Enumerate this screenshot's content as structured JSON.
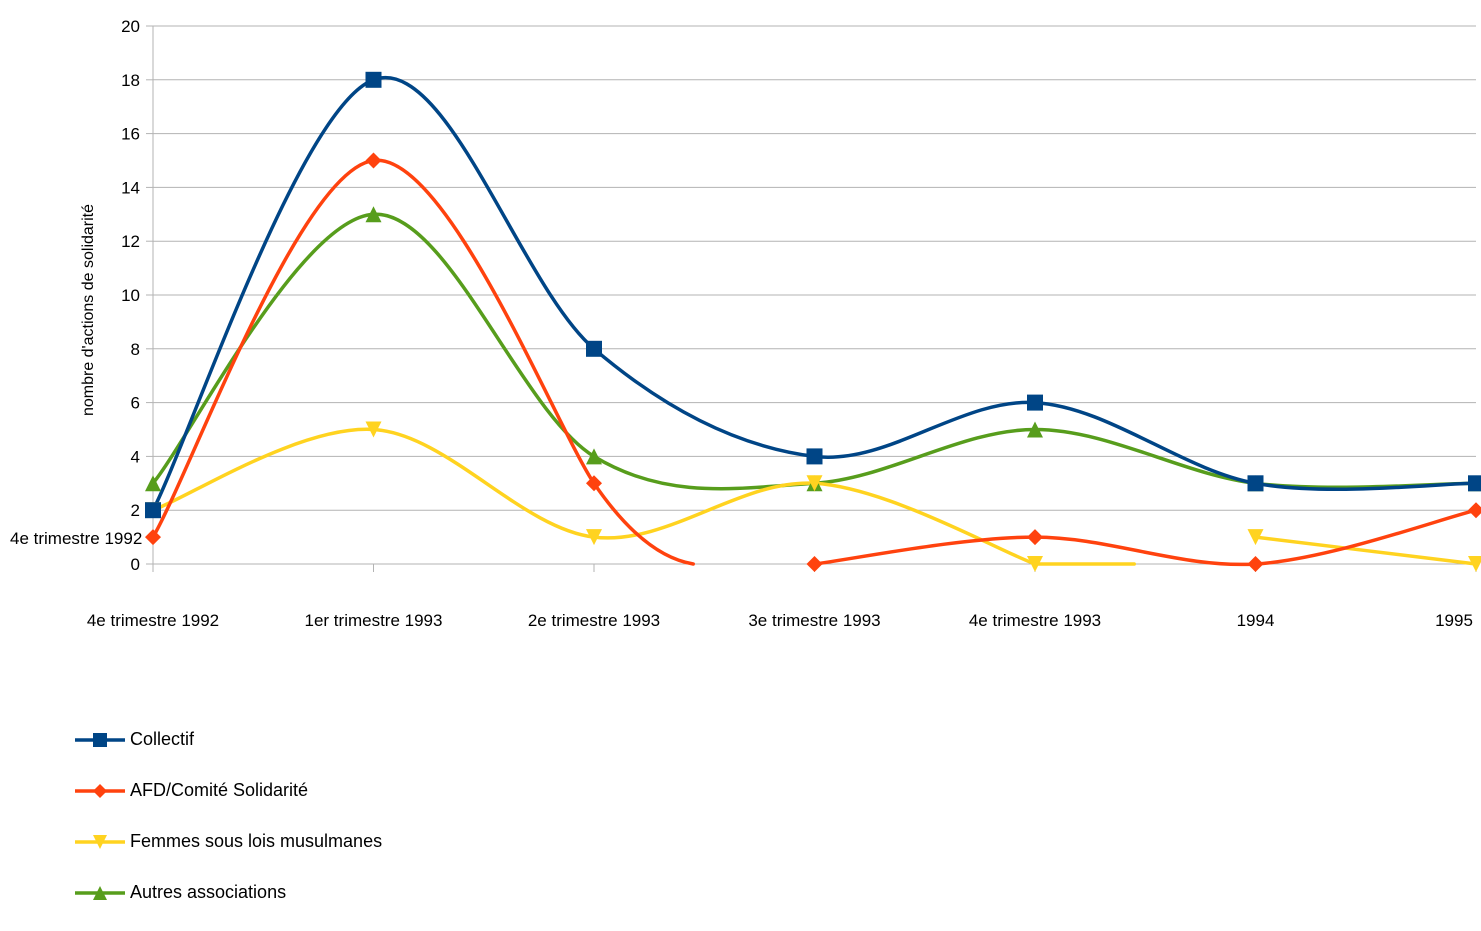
{
  "chart_data": {
    "type": "line",
    "title": "",
    "xlabel": "",
    "ylabel": "nombre d'actions de solidarité",
    "categories": [
      "4e trimestre 1992",
      "1er trimestre 1993",
      "2e trimestre 1993",
      "3e trimestre 1993",
      "4e trimestre 1993",
      "1994",
      "1995"
    ],
    "yticks": [
      "0",
      "2",
      "4",
      "6",
      "8",
      "10",
      "12",
      "14",
      "16",
      "18",
      "20"
    ],
    "ylim": [
      0,
      20
    ],
    "grid": true,
    "smooth": true,
    "legend_position": "bottom-left",
    "series": [
      {
        "name": "Collectif",
        "values": [
          2,
          18,
          8,
          4,
          6,
          3,
          3
        ],
        "color": "#004586",
        "marker": "square"
      },
      {
        "name": "AFD/Comité Solidarité",
        "values": [
          1,
          15,
          3,
          0,
          1,
          0,
          2
        ],
        "color": "#ff420e",
        "marker": "diamond",
        "gaps_after": [
          2
        ]
      },
      {
        "name": "Femmes sous lois musulmanes",
        "values": [
          2,
          5,
          1,
          3,
          0,
          1,
          0
        ],
        "color": "#ffd320",
        "marker": "triangle-down",
        "gaps_after": [
          4
        ]
      },
      {
        "name": "Autres associations",
        "values": [
          3,
          13,
          4,
          3,
          5,
          3,
          3
        ],
        "color": "#579d1c",
        "marker": "triangle-up"
      }
    ]
  },
  "stray_label": "4e trimestre 1992"
}
